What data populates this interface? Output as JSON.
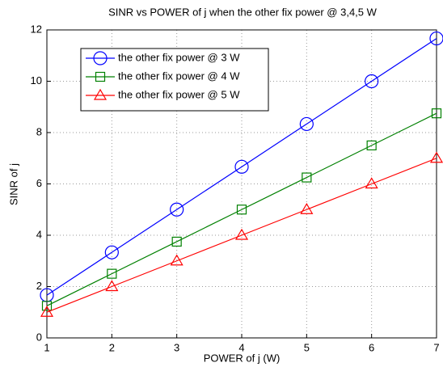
{
  "chart_data": {
    "type": "line",
    "title": "SINR vs POWER of j when the other fix power @ 3,4,5 W",
    "x_label": "POWER of j (W)",
    "y_label": "SINR of j",
    "x": [
      1,
      2,
      3,
      4,
      5,
      6,
      7
    ],
    "series": [
      {
        "name": "the other fix power @ 3 W",
        "color": "#0000ff",
        "marker": "circle",
        "values": [
          1.667,
          3.333,
          5,
          6.667,
          8.333,
          10,
          11.667
        ]
      },
      {
        "name": "the other fix power @ 4 W",
        "color": "#008000",
        "marker": "square",
        "values": [
          1.25,
          2.5,
          3.75,
          5,
          6.25,
          7.5,
          8.75
        ]
      },
      {
        "name": "the other fix power @ 5 W",
        "color": "#ff0000",
        "marker": "triangle",
        "values": [
          1,
          2,
          3,
          4,
          5,
          6,
          7
        ]
      }
    ],
    "xlim": [
      1,
      7
    ],
    "ylim": [
      0,
      12
    ],
    "xticks": [
      1,
      2,
      3,
      4,
      5,
      6,
      7
    ],
    "yticks": [
      0,
      2,
      4,
      6,
      8,
      10,
      12
    ],
    "grid": true,
    "legend": "upper left"
  }
}
